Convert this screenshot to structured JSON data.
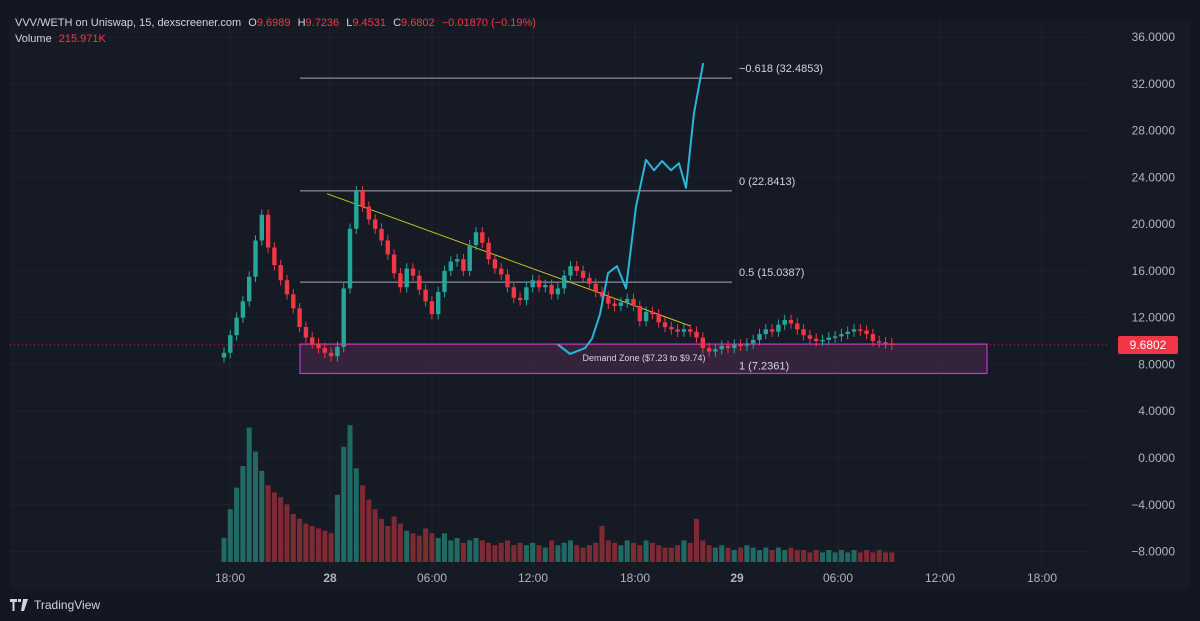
{
  "header": {
    "pair": "VVV/WETH on Uniswap, 15, dexscreener.com",
    "o_label": "O",
    "o_value": "9.6989",
    "h_label": "H",
    "h_value": "9.7236",
    "l_label": "L",
    "l_value": "9.4531",
    "c_label": "C",
    "c_value": "9.6802",
    "change": "−0.01870 (−0.19%)",
    "volume_label": "Volume",
    "volume_value": "215.971K"
  },
  "footer": {
    "brand": "TradingView"
  },
  "colors": {
    "up": "#26a69a",
    "down": "#f23645",
    "volume_up": "#1f6b63",
    "volume_down": "#7d2a33",
    "zone_fill": "#3b2640",
    "zone_stroke": "#b03ecd",
    "fib": "#a7a9b0",
    "trendline": "#c9c21e",
    "projection": "#29b6d8"
  },
  "chart_data": {
    "type": "candlestick",
    "y_axis": {
      "ticks": [
        "36.0000",
        "32.0000",
        "28.0000",
        "24.0000",
        "20.0000",
        "16.0000",
        "12.0000",
        "8.0000",
        "4.0000",
        "0.0000",
        "−4.0000",
        "−8.0000"
      ],
      "range": [
        -9.5,
        37.5
      ]
    },
    "x_axis": {
      "ticks": [
        "18:00",
        "28",
        "06:00",
        "12:00",
        "18:00",
        "29",
        "06:00",
        "12:00",
        "18:00"
      ]
    },
    "current_price": "9.6802",
    "fib_levels": [
      {
        "label": "−0.618 (32.4853)",
        "value": 32.4853
      },
      {
        "label": "0 (22.8413)",
        "value": 22.8413
      },
      {
        "label": "0.5 (15.0387)",
        "value": 15.0387
      },
      {
        "label": "1 (7.2361)",
        "value": 7.2361
      }
    ],
    "demand_zone": {
      "label": "Demand Zone ($7.23 to $9.74)",
      "low": 7.23,
      "high": 9.74
    },
    "closes": [
      9.0,
      10.5,
      12.0,
      13.4,
      15.5,
      18.6,
      20.8,
      18.0,
      16.5,
      15.2,
      14.0,
      12.8,
      11.2,
      10.3,
      9.8,
      9.4,
      9.0,
      8.7,
      9.5,
      14.5,
      19.6,
      22.8,
      21.5,
      20.4,
      19.6,
      18.6,
      17.4,
      15.8,
      14.6,
      16.2,
      15.6,
      14.4,
      13.4,
      12.3,
      14.2,
      16.0,
      16.8,
      17.0,
      16.0,
      18.2,
      19.3,
      18.4,
      17.0,
      16.2,
      15.7,
      14.6,
      13.7,
      13.5,
      14.6,
      15.2,
      14.6,
      14.8,
      14.0,
      14.5,
      15.6,
      16.4,
      16.0,
      15.4,
      14.9,
      14.2,
      13.8,
      13.2,
      13.0,
      13.3,
      13.6,
      13.0,
      11.7,
      12.5,
      12.3,
      11.6,
      11.2,
      11.0,
      10.8,
      11.0,
      10.8,
      10.3,
      9.4,
      9.1,
      9.3,
      9.6,
      9.4,
      9.7,
      9.6,
      9.8,
      10.1,
      10.6,
      11.0,
      10.8,
      11.4,
      11.8,
      11.5,
      11.0,
      10.5,
      10.2,
      10.0,
      10.1,
      10.3,
      10.4,
      10.6,
      10.8,
      11.0,
      10.9,
      10.6,
      10.0,
      9.9,
      9.8,
      9.68
    ],
    "volume": [
      1.0,
      2.2,
      3.1,
      4.0,
      5.6,
      4.6,
      3.8,
      3.2,
      2.9,
      2.7,
      2.4,
      2.0,
      1.8,
      1.6,
      1.5,
      1.4,
      1.3,
      1.2,
      2.8,
      4.8,
      5.7,
      3.9,
      3.2,
      2.6,
      2.2,
      1.8,
      1.5,
      1.9,
      1.6,
      1.3,
      1.2,
      1.1,
      1.4,
      1.2,
      1.0,
      1.2,
      0.9,
      1.0,
      0.8,
      0.9,
      1.0,
      0.9,
      0.8,
      0.7,
      0.8,
      0.9,
      0.7,
      0.8,
      0.7,
      0.8,
      0.7,
      0.6,
      0.9,
      0.7,
      0.8,
      0.9,
      0.7,
      0.6,
      0.7,
      0.8,
      1.5,
      0.9,
      0.8,
      0.7,
      0.9,
      0.8,
      0.7,
      0.9,
      0.8,
      0.7,
      0.6,
      0.6,
      0.7,
      0.9,
      0.8,
      1.8,
      0.9,
      0.7,
      0.6,
      0.7,
      0.6,
      0.5,
      0.6,
      0.7,
      0.6,
      0.5,
      0.6,
      0.5,
      0.6,
      0.5,
      0.6,
      0.5,
      0.5,
      0.4,
      0.5,
      0.4,
      0.5,
      0.4,
      0.5,
      0.4,
      0.5,
      0.4,
      0.5,
      0.4,
      0.5,
      0.4,
      0.4
    ],
    "trendline": [
      {
        "t": 0.0,
        "v": 22.6
      },
      {
        "t": 1.0,
        "v": 11.3
      }
    ],
    "projection": [
      9.7,
      8.9,
      9.4,
      10.2,
      12.3,
      15.8,
      16.4,
      14.5,
      21.5,
      25.5,
      24.6,
      25.4,
      24.6,
      25.2,
      23.1,
      29.5,
      33.7
    ]
  }
}
